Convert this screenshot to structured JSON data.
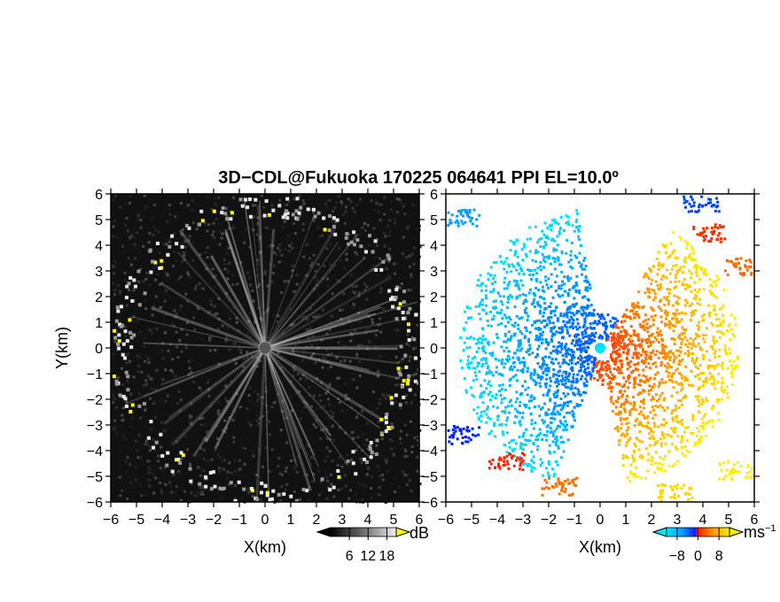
{
  "figure": {
    "title": "3D−CDL@Fukuoka 170225 064641 PPI EL=10.0º"
  },
  "chart_data": [
    {
      "type": "heatmap",
      "name": "intensity",
      "xlabel": "X(km)",
      "ylabel": "Y(km)",
      "xlim": [
        -6,
        6
      ],
      "ylim": [
        -6,
        6
      ],
      "xticks": [
        "−6",
        "−5",
        "−4",
        "−3",
        "−2",
        "−1",
        "0",
        "1",
        "2",
        "3",
        "4",
        "5",
        "6"
      ],
      "yticks": [
        "−6",
        "−5",
        "−4",
        "−3",
        "−2",
        "−1",
        "0",
        "1",
        "2",
        "3",
        "4",
        "5",
        "6"
      ],
      "colorbar": {
        "unit": "dB",
        "ticks": [
          "6",
          "12",
          "18"
        ],
        "range": [
          0,
          21
        ]
      },
      "description_values": {
        "ring_radius_km": 5.8,
        "center": [
          0,
          0
        ]
      }
    },
    {
      "type": "heatmap",
      "name": "doppler_velocity",
      "xlabel": "X(km)",
      "ylabel": "",
      "xlim": [
        -6,
        6
      ],
      "ylim": [
        -6,
        6
      ],
      "xticks": [
        "−6",
        "−5",
        "−4",
        "−3",
        "−2",
        "−1",
        "0",
        "1",
        "2",
        "3",
        "4",
        "5",
        "6"
      ],
      "yticks": [
        "−6",
        "−5",
        "−4",
        "−3",
        "−2",
        "−1",
        "0",
        "1",
        "2",
        "3",
        "4",
        "5",
        "6"
      ],
      "colorbar": {
        "unit": "ms",
        "unit_exp": "−1",
        "ticks": [
          "−8",
          "0",
          "8"
        ],
        "range": [
          -12,
          12
        ]
      },
      "description_values": {
        "negative_sector_deg": [
          90,
          250
        ],
        "positive_sector_deg": [
          -90,
          60
        ]
      }
    }
  ]
}
